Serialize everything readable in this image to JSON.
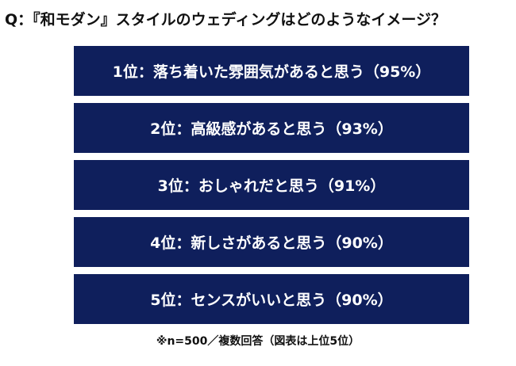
{
  "question": "Q：『和モダン』スタイルのウェディングはどのようなイメージ？",
  "rankings": [
    {
      "label": "1位：落ち着いた雰囲気があると思う（95%）"
    },
    {
      "label": "2位：高級感があると思う（93%）"
    },
    {
      "label": "3位：おしゃれだと思う（91%）"
    },
    {
      "label": "4位：新しさがあると思う（90%）"
    },
    {
      "label": "5位：センスがいいと思う（90%）"
    }
  ],
  "footnote": "※n=500／複数回答（図表は上位5位）",
  "colors": {
    "box_background": "#0f1f5c",
    "box_text": "#ffffff",
    "page_text": "#111111"
  }
}
